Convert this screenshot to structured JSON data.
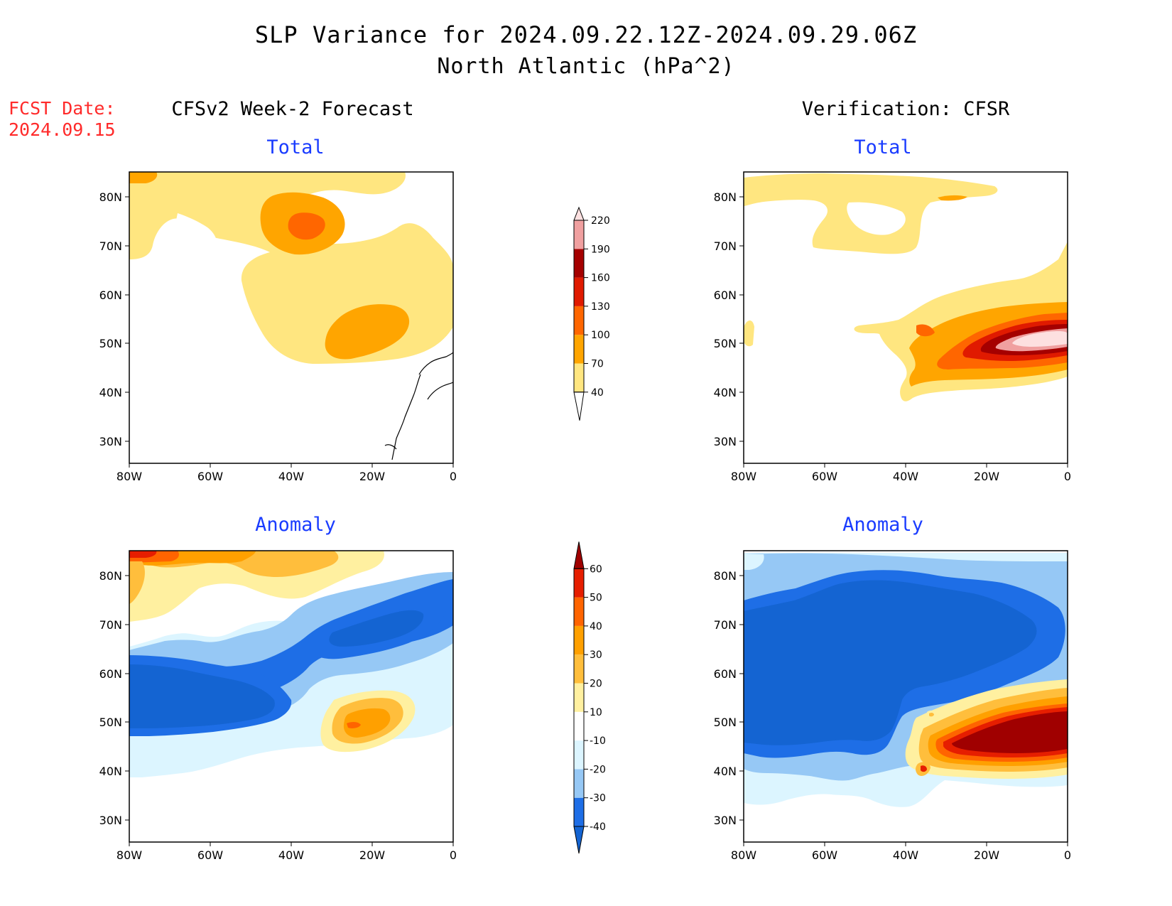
{
  "header": {
    "title": "SLP Variance for 2024.09.22.12Z-2024.09.29.06Z",
    "subtitle": "North Atlantic (hPa^2)",
    "fcst_label": "FCST Date:",
    "fcst_date": "2024.09.15"
  },
  "columns": {
    "left": "CFSv2 Week-2 Forecast",
    "right": "Verification: CFSR"
  },
  "panels": {
    "total_label": "Total",
    "anomaly_label": "Anomaly"
  },
  "axes": {
    "lat_labels": [
      "80N",
      "70N",
      "60N",
      "50N",
      "40N",
      "30N"
    ],
    "lon_labels": [
      "80W",
      "60W",
      "40W",
      "20W",
      "0"
    ]
  },
  "colorbar_total": {
    "levels": [
      "40",
      "70",
      "100",
      "130",
      "160",
      "190",
      "220"
    ],
    "colors": [
      "#ffe680",
      "#ffa500",
      "#ff6600",
      "#e01a00",
      "#a50000",
      "#f0a0a0",
      "#fde0e0"
    ]
  },
  "colorbar_anomaly": {
    "levels": [
      "-40",
      "-30",
      "-20",
      "-10",
      "10",
      "20",
      "30",
      "40",
      "50",
      "60"
    ],
    "colors": [
      "#1464d2",
      "#1e6ee6",
      "#96c8f5",
      "#dcf5ff",
      "#ffffff",
      "#fff0a0",
      "#ffbe3c",
      "#ffa000",
      "#ff6400",
      "#e61e00",
      "#a00000"
    ]
  },
  "map_colors": {
    "light_yellow": "#ffe680",
    "orange": "#ffa500",
    "dark_orange": "#ff6600",
    "red": "#e01a00",
    "dark_red": "#a50000",
    "pink": "#f0a0a0",
    "light_pink": "#fde0e0",
    "yellow2": "#fff0a0",
    "gold": "#ffbe3c",
    "light_blue": "#dcf5ff",
    "mid_blue": "#96c8f5",
    "blue": "#1e6ee6",
    "dark_blue": "#1464d2"
  }
}
